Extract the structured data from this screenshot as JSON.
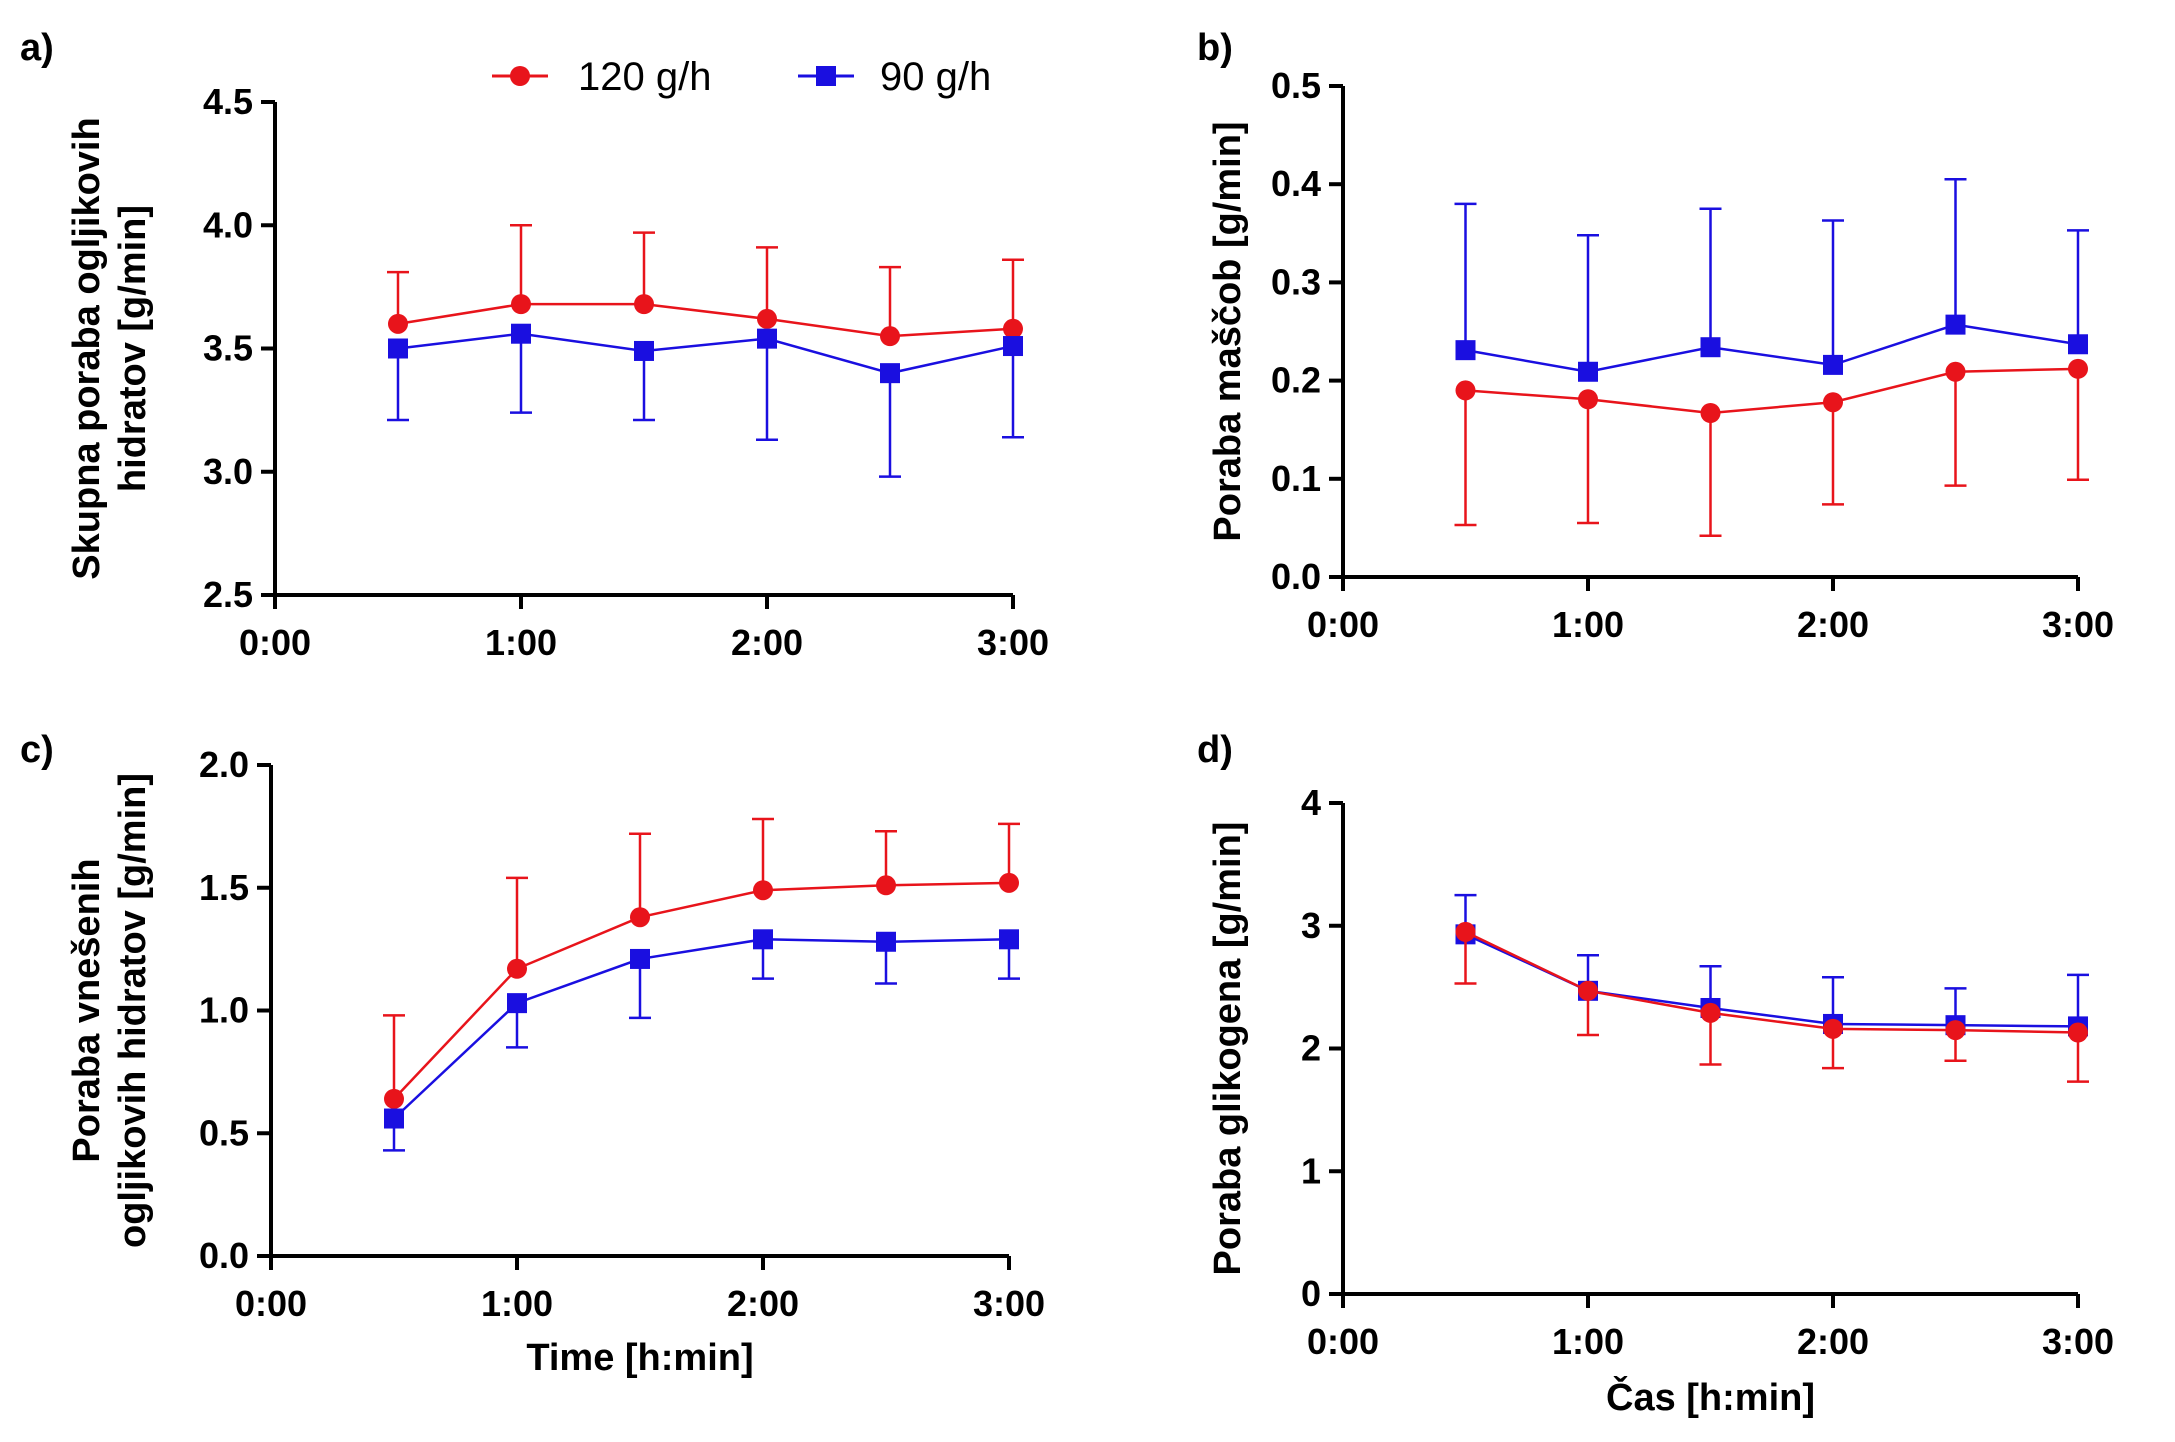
{
  "colors": {
    "series_120": "#e8141b",
    "series_90": "#1a0fe0",
    "axis": "#000000"
  },
  "legend": [
    {
      "name": "120 g/h",
      "marker": "circle",
      "color": "#e8141b"
    },
    {
      "name": "90 g/h",
      "marker": "square",
      "color": "#1a0fe0"
    }
  ],
  "chart_data": [
    {
      "id": "a",
      "panel_label": "a)",
      "type": "line",
      "title": "",
      "ylabel_lines": [
        "Skupna poraba ogljikovih",
        "hidratov [g/min]"
      ],
      "xlabel": "",
      "xlim": [
        0,
        180
      ],
      "ylim": [
        2.5,
        4.5
      ],
      "xticks": [
        0,
        60,
        120,
        180
      ],
      "xtick_labels": [
        "0:00",
        "1:00",
        "2:00",
        "3:00"
      ],
      "yticks": [
        2.5,
        3.0,
        3.5,
        4.0,
        4.5
      ],
      "ytick_labels": [
        "2.5",
        "3.0",
        "3.5",
        "4.0",
        "4.5"
      ],
      "x": [
        30,
        60,
        90,
        120,
        150,
        180
      ],
      "series": [
        {
          "name": "120 g/h",
          "values": [
            3.6,
            3.68,
            3.68,
            3.62,
            3.55,
            3.58
          ],
          "err_up": [
            0.21,
            0.32,
            0.29,
            0.29,
            0.28,
            0.28
          ],
          "err_down": [
            0,
            0,
            0,
            0,
            0,
            0
          ]
        },
        {
          "name": "90 g/h",
          "values": [
            3.5,
            3.56,
            3.49,
            3.54,
            3.4,
            3.51
          ],
          "err_up": [
            0,
            0,
            0,
            0,
            0,
            0
          ],
          "err_down": [
            0.29,
            0.32,
            0.28,
            0.41,
            0.42,
            0.37
          ]
        }
      ]
    },
    {
      "id": "b",
      "panel_label": "b)",
      "type": "line",
      "title": "",
      "ylabel_lines": [
        "Poraba maščob  [g/min]"
      ],
      "xlabel": "",
      "xlim": [
        0,
        180
      ],
      "ylim": [
        0,
        0.5
      ],
      "xticks": [
        0,
        60,
        120,
        180
      ],
      "xtick_labels": [
        "0:00",
        "1:00",
        "2:00",
        "3:00"
      ],
      "yticks": [
        0,
        0.1,
        0.2,
        0.3,
        0.4,
        0.5
      ],
      "ytick_labels": [
        "0.0",
        "0.1",
        "0.2",
        "0.3",
        "0.4",
        "0.5"
      ],
      "x": [
        30,
        60,
        90,
        120,
        150,
        180
      ],
      "series": [
        {
          "name": "120 g/h",
          "values": [
            0.19,
            0.181,
            0.167,
            0.178,
            0.209,
            0.212
          ],
          "err_up": [
            0,
            0,
            0,
            0,
            0,
            0
          ],
          "err_down": [
            0.137,
            0.126,
            0.125,
            0.104,
            0.116,
            0.113
          ]
        },
        {
          "name": "90 g/h",
          "values": [
            0.231,
            0.209,
            0.234,
            0.216,
            0.257,
            0.237
          ],
          "err_up": [
            0.149,
            0.139,
            0.141,
            0.147,
            0.148,
            0.116
          ],
          "err_down": [
            0,
            0,
            0,
            0,
            0,
            0
          ]
        }
      ]
    },
    {
      "id": "c",
      "panel_label": "c)",
      "type": "line",
      "title": "",
      "ylabel_lines": [
        "Poraba vnešenih",
        "ogljikovih hidratov [g/min]"
      ],
      "xlabel": "Time [h:min]",
      "xlim": [
        0,
        180
      ],
      "ylim": [
        0,
        2.0
      ],
      "xticks": [
        0,
        60,
        120,
        180
      ],
      "xtick_labels": [
        "0:00",
        "1:00",
        "2:00",
        "3:00"
      ],
      "yticks": [
        0,
        0.5,
        1.0,
        1.5,
        2.0
      ],
      "ytick_labels": [
        "0.0",
        "0.5",
        "1.0",
        "1.5",
        "2.0"
      ],
      "x": [
        30,
        60,
        90,
        120,
        150,
        180
      ],
      "series": [
        {
          "name": "120 g/h",
          "values": [
            0.64,
            1.17,
            1.38,
            1.49,
            1.51,
            1.52
          ],
          "err_up": [
            0.34,
            0.37,
            0.34,
            0.29,
            0.22,
            0.24
          ],
          "err_down": [
            0,
            0,
            0,
            0,
            0,
            0
          ]
        },
        {
          "name": "90 g/h",
          "values": [
            0.56,
            1.03,
            1.21,
            1.29,
            1.28,
            1.29
          ],
          "err_up": [
            0,
            0,
            0,
            0,
            0,
            0
          ],
          "err_down": [
            0.13,
            0.18,
            0.24,
            0.16,
            0.17,
            0.16
          ]
        }
      ]
    },
    {
      "id": "d",
      "panel_label": "d)",
      "type": "line",
      "title": "",
      "ylabel_lines": [
        "Poraba glikogena [g/min]"
      ],
      "xlabel": "Čas [h:min]",
      "xlim": [
        0,
        180
      ],
      "ylim": [
        0,
        4
      ],
      "xticks": [
        0,
        60,
        120,
        180
      ],
      "xtick_labels": [
        "0:00",
        "1:00",
        "2:00",
        "3:00"
      ],
      "yticks": [
        0,
        1,
        2,
        3,
        4
      ],
      "ytick_labels": [
        "0",
        "1",
        "2",
        "3",
        "4"
      ],
      "x": [
        30,
        60,
        90,
        120,
        150,
        180
      ],
      "series": [
        {
          "name": "90 g/h",
          "values": [
            2.93,
            2.47,
            2.33,
            2.2,
            2.19,
            2.18
          ],
          "err_up": [
            0.32,
            0.29,
            0.34,
            0.38,
            0.3,
            0.42
          ],
          "err_down": [
            0,
            0,
            0,
            0,
            0,
            0
          ]
        },
        {
          "name": "120 g/h",
          "values": [
            2.95,
            2.47,
            2.29,
            2.16,
            2.15,
            2.13
          ],
          "err_up": [
            0,
            0,
            0,
            0,
            0,
            0
          ],
          "err_down": [
            0.42,
            0.36,
            0.42,
            0.32,
            0.25,
            0.4
          ]
        }
      ]
    }
  ]
}
